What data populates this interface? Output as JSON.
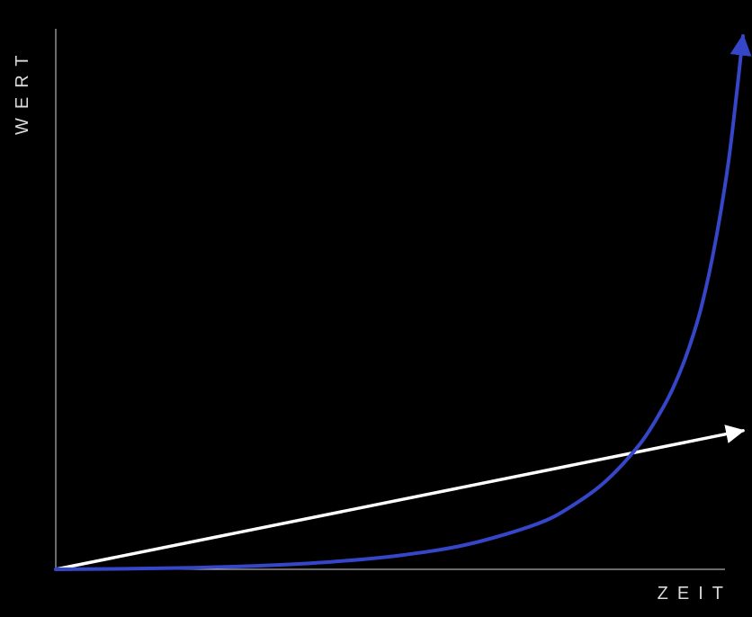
{
  "chart_data": {
    "type": "line",
    "title": "",
    "xlabel": "ZEIT",
    "ylabel": "WERT",
    "grid": false,
    "legend": "none",
    "xlim": [
      0,
      100
    ],
    "ylim": [
      0,
      100
    ],
    "series": [
      {
        "color": "#ffffff",
        "arrow": true,
        "x": [
          0,
          100
        ],
        "y": [
          0,
          26
        ]
      },
      {
        "color": "#3546c8",
        "arrow": true,
        "x": [
          0,
          10,
          20,
          30,
          40,
          50,
          60,
          70,
          75,
          80,
          85,
          88,
          90,
          92,
          94,
          96,
          98,
          100
        ],
        "y": [
          0,
          0.1,
          0.3,
          0.7,
          1.4,
          2.6,
          4.7,
          8.5,
          11.8,
          16.5,
          23.5,
          29.5,
          34.5,
          41.0,
          49.5,
          61.5,
          77.5,
          100
        ]
      }
    ]
  }
}
